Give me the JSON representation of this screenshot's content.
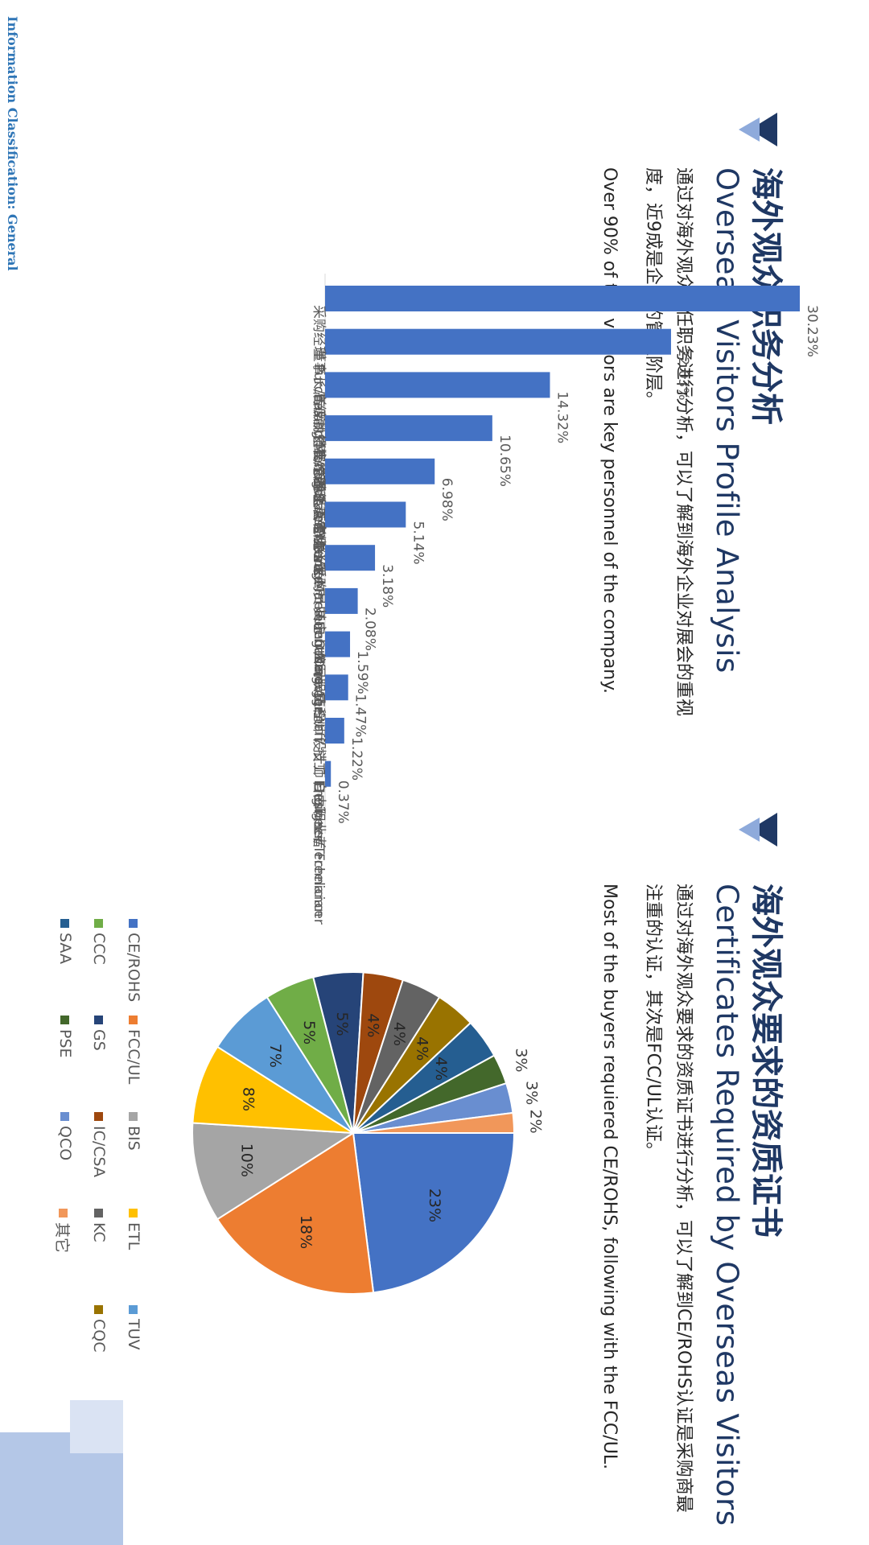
{
  "footer": {
    "classification": "Information Classification: General"
  },
  "section1": {
    "title_cn": "海外观众职务分析",
    "title_en": "Overseas Visitors Profile Analysis",
    "desc_cn": "通过对海外观众所任职务进行分析，可以了解到海外企业对展会的重视度，近9成是企业的管理阶层。",
    "desc_en": "Over 90% of the visitors are key personnel of the company."
  },
  "section2": {
    "title_cn": "海外观众要求的资质证书",
    "title_en": "Certificates Required by Overseas Visitors",
    "desc_cn": "通过对海外观众要求的资质证书进行分析，可以了解到CE/ROHS认证是采购商最注重的认证，其次是FCC/UL认证。",
    "desc_en": "Most of the buyers requiered CE/ROHS, following with the FCC/UL."
  },
  "colors": {
    "accent": "#1f3864",
    "bar": "#4472c4",
    "icon_light": "#8eaadb",
    "deco": "#b4c7e7"
  },
  "chart_data": [
    {
      "type": "bar",
      "orientation": "vertical",
      "categories": [
        "采购经理 Purchasing Manager",
        "董事长/首席执行官/首席运营官/总…",
        "高级副总裁/总经理 Assistant…",
        "销售经理 Sales Manager",
        "副总裁/总监 Vice President/Director",
        "市场经理 Marketing Manager",
        "采购员 Purchasing Agent",
        "其它 Others",
        "公司职员 Staff",
        "工程师 / 技工 Engineer/Technician",
        "设计师 Designer",
        "自由职业者 Freelancer"
      ],
      "values": [
        30.23,
        22.03,
        14.32,
        10.65,
        6.98,
        5.14,
        3.18,
        2.08,
        1.59,
        1.47,
        1.22,
        0.37
      ],
      "labels": [
        "30.23%",
        "22.03%",
        "14.32%",
        "10.65%",
        "6.98%",
        "5.14%",
        "3.18%",
        "2.08%",
        "1.59%",
        "1.47%",
        "1.22%",
        "0.37%"
      ],
      "ylim": [
        0,
        30.23
      ],
      "color": "#4472c4"
    },
    {
      "type": "pie",
      "categories": [
        "CE/ROHS",
        "FCC/UL",
        "BIS",
        "ETL",
        "TUV",
        "CCC",
        "GS",
        "IC/CSA",
        "KC",
        "CQC",
        "SAA",
        "PSE",
        "QCO",
        "其它"
      ],
      "values": [
        23,
        18,
        10,
        8,
        7,
        5,
        5,
        4,
        4,
        4,
        4,
        3,
        3,
        2
      ],
      "labels": [
        "23%",
        "18%",
        "10%",
        "8%",
        "7%",
        "5%",
        "5%",
        "4%",
        "4%",
        "4%",
        "4%",
        "3%",
        "3%",
        "2%"
      ],
      "colors": [
        "#4472c4",
        "#ed7d31",
        "#a5a5a5",
        "#ffc000",
        "#5b9bd5",
        "#70ad47",
        "#264478",
        "#9e480e",
        "#636363",
        "#997300",
        "#255e91",
        "#43682b",
        "#698ed0",
        "#f1975a"
      ],
      "legend": [
        "CE/ROHS",
        "FCC/UL",
        "BIS",
        "ETL",
        "TUV",
        "CCC",
        "GS",
        "IC/CSA",
        "KC",
        "CQC",
        "SAA",
        "PSE",
        "QCO",
        "其它"
      ],
      "legend_position": "bottom"
    }
  ]
}
